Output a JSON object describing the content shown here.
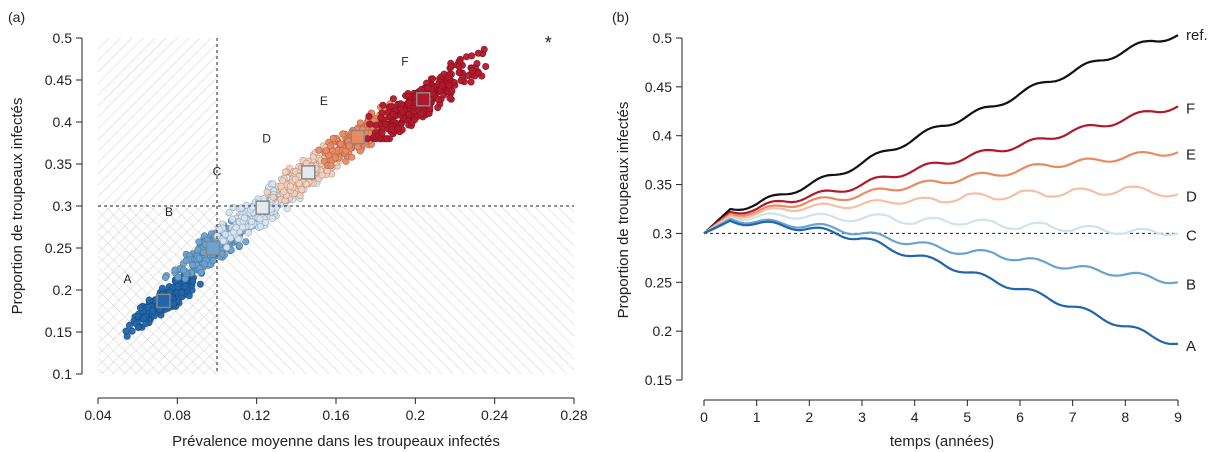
{
  "figure": {
    "colors": {
      "A": "#2166ac",
      "B": "#6aa3d0",
      "C": "#cfe2f1",
      "D": "#f5cab4",
      "E": "#ea8a62",
      "F": "#b2182b",
      "ref": "#111111"
    }
  },
  "chart_data": [
    {
      "panel_label": "(a)",
      "type": "scatter",
      "xlabel": "Prévalence moyenne dans les troupeaux infectés",
      "ylabel": "Proportion de troupeaux infectés",
      "xlim": [
        0.04,
        0.28
      ],
      "ylim": [
        0.1,
        0.5
      ],
      "xticks": [
        "0.04",
        "0.08",
        "0.12",
        "0.16",
        "0.2",
        "0.24",
        "0.28"
      ],
      "yticks": [
        "0.1",
        "0.15",
        "0.2",
        "0.25",
        "0.3",
        "0.35",
        "0.4",
        "0.45",
        "0.5"
      ],
      "reference_lines": {
        "x": 0.1,
        "y": 0.3
      },
      "hatched_regions": "x < 0.1 and y < 0.3 (both hatches)",
      "star_marker": {
        "label": "*",
        "x": 0.267,
        "y": 0.495
      },
      "groups": [
        {
          "name": "A",
          "mean": [
            0.073,
            0.187
          ],
          "x_range": [
            0.05,
            0.1
          ],
          "y_range": [
            0.095,
            0.225
          ]
        },
        {
          "name": "B",
          "mean": [
            0.098,
            0.25
          ],
          "x_range": [
            0.06,
            0.13
          ],
          "y_range": [
            0.18,
            0.3
          ]
        },
        {
          "name": "C",
          "mean": [
            0.123,
            0.298
          ],
          "x_range": [
            0.1,
            0.155
          ],
          "y_range": [
            0.25,
            0.34
          ]
        },
        {
          "name": "D",
          "mean": [
            0.146,
            0.34
          ],
          "x_range": [
            0.11,
            0.18
          ],
          "y_range": [
            0.3,
            0.385
          ]
        },
        {
          "name": "E",
          "mean": [
            0.171,
            0.382
          ],
          "x_range": [
            0.14,
            0.2
          ],
          "y_range": [
            0.34,
            0.43
          ]
        },
        {
          "name": "F",
          "mean": [
            0.204,
            0.427
          ],
          "x_range": [
            0.17,
            0.27
          ],
          "y_range": [
            0.38,
            0.5
          ]
        }
      ]
    },
    {
      "panel_label": "(b)",
      "type": "line",
      "xlabel": "temps (années)",
      "ylabel": "Proportion de troupeaux infectés",
      "xlim": [
        0,
        9
      ],
      "ylim": [
        0.15,
        0.5
      ],
      "xticks": [
        "0",
        "1",
        "2",
        "3",
        "4",
        "5",
        "6",
        "7",
        "8",
        "9"
      ],
      "yticks": [
        "0.15",
        "0.2",
        "0.25",
        "0.3",
        "0.35",
        "0.4",
        "0.45",
        "0.5"
      ],
      "reference_line": {
        "y": 0.3
      },
      "x": [
        0,
        0.5,
        1,
        1.5,
        2,
        2.5,
        3,
        3.5,
        4,
        4.5,
        5,
        5.5,
        6,
        6.5,
        7,
        7.5,
        8,
        8.5,
        9
      ],
      "series": [
        {
          "name": "ref.",
          "values": [
            0.3,
            0.325,
            0.33,
            0.34,
            0.35,
            0.36,
            0.372,
            0.385,
            0.397,
            0.41,
            0.42,
            0.43,
            0.443,
            0.455,
            0.465,
            0.477,
            0.487,
            0.497,
            0.503
          ]
        },
        {
          "name": "F",
          "values": [
            0.3,
            0.322,
            0.325,
            0.333,
            0.338,
            0.343,
            0.35,
            0.358,
            0.365,
            0.372,
            0.378,
            0.385,
            0.39,
            0.397,
            0.405,
            0.41,
            0.417,
            0.425,
            0.43
          ]
        },
        {
          "name": "E",
          "values": [
            0.3,
            0.32,
            0.322,
            0.328,
            0.333,
            0.335,
            0.34,
            0.345,
            0.35,
            0.352,
            0.358,
            0.36,
            0.365,
            0.37,
            0.372,
            0.375,
            0.378,
            0.382,
            0.383
          ]
        },
        {
          "name": "D",
          "values": [
            0.3,
            0.318,
            0.32,
            0.325,
            0.327,
            0.328,
            0.33,
            0.332,
            0.335,
            0.332,
            0.34,
            0.335,
            0.343,
            0.338,
            0.345,
            0.34,
            0.347,
            0.342,
            0.34
          ]
        },
        {
          "name": "C",
          "values": [
            0.3,
            0.316,
            0.317,
            0.318,
            0.318,
            0.316,
            0.315,
            0.318,
            0.31,
            0.315,
            0.31,
            0.312,
            0.305,
            0.31,
            0.303,
            0.306,
            0.3,
            0.303,
            0.3
          ]
        },
        {
          "name": "B",
          "values": [
            0.3,
            0.315,
            0.312,
            0.31,
            0.308,
            0.305,
            0.3,
            0.295,
            0.29,
            0.285,
            0.28,
            0.28,
            0.273,
            0.27,
            0.265,
            0.262,
            0.258,
            0.255,
            0.25
          ]
        },
        {
          "name": "A",
          "values": [
            0.3,
            0.313,
            0.31,
            0.308,
            0.305,
            0.3,
            0.295,
            0.285,
            0.277,
            0.27,
            0.26,
            0.252,
            0.243,
            0.235,
            0.225,
            0.215,
            0.205,
            0.195,
            0.187
          ]
        }
      ]
    }
  ]
}
